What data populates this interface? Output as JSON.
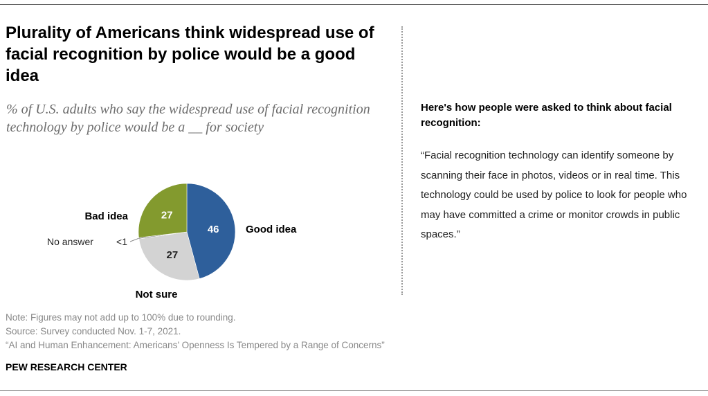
{
  "title": "Plurality of Americans think widespread use of facial recognition by police would be a good idea",
  "subtitle": "% of U.S. adults who say the widespread use of facial recognition technology by police would be a __ for society",
  "sidebar": {
    "heading": "Here's how people were asked to think about facial recognition:",
    "quote": "“Facial recognition technology can identify someone by scanning their face in photos, videos or in real time. This technology could be used by police to look for people who may have committed a crime or monitor crowds in public spaces.”"
  },
  "chart_data": {
    "type": "pie",
    "slices": [
      {
        "label": "Good idea",
        "value": 46,
        "display": "46",
        "color": "#2e5f9b",
        "value_color": "#ffffff"
      },
      {
        "label": "Not sure",
        "value": 27,
        "display": "27",
        "color": "#d3d3d3",
        "value_color": "#222222"
      },
      {
        "label": "No answer",
        "value": 0.4,
        "display": "<1",
        "color": "#777777",
        "value_color": "#222222"
      },
      {
        "label": "Bad idea",
        "value": 27,
        "display": "27",
        "color": "#839a2e",
        "value_color": "#ffffff"
      }
    ]
  },
  "notes": {
    "note": "Note: Figures may not add up to 100% due to rounding.",
    "source": "Source: Survey conducted Nov. 1-7, 2021.",
    "report": "“AI and Human Enhancement: Americans’ Openness Is Tempered by a Range of Concerns”"
  },
  "brand": "PEW RESEARCH CENTER"
}
